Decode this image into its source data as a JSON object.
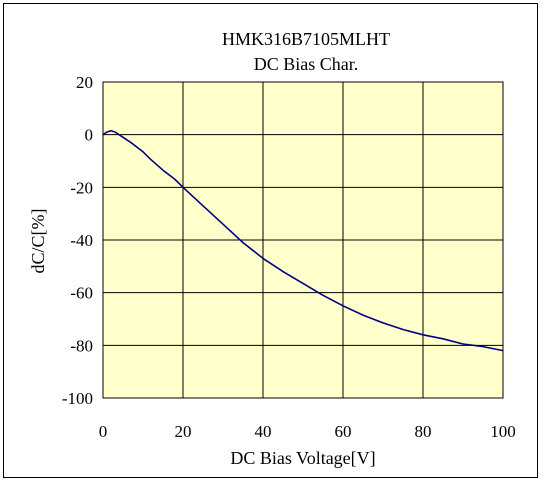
{
  "chart_data": {
    "type": "line",
    "title": "HMK316B7105MLHT",
    "subtitle": "DC Bias Char.",
    "xlabel": "DC Bias Voltage[V]",
    "ylabel": "dC/C[%]",
    "xlim": [
      0,
      100
    ],
    "ylim": [
      -100,
      20
    ],
    "x_ticks": [
      "0",
      "20",
      "40",
      "60",
      "80",
      "100"
    ],
    "y_ticks": [
      "20",
      "0",
      "-20",
      "-40",
      "-60",
      "-80",
      "-100"
    ],
    "grid": true,
    "legend": "none",
    "colors": {
      "plot_background": "#ffffcc",
      "line": "#000080",
      "grid": "#000000"
    },
    "series": [
      {
        "x": [
          0,
          1,
          2,
          3,
          5,
          7,
          10,
          12,
          15,
          18,
          20,
          25,
          30,
          35,
          40,
          45,
          50,
          55,
          60,
          65,
          70,
          75,
          80,
          85,
          90,
          95,
          100
        ],
        "y": [
          0,
          1,
          1.5,
          1,
          -1,
          -3,
          -6.5,
          -9.5,
          -13.5,
          -17,
          -20,
          -27,
          -34,
          -41,
          -47,
          -52,
          -56.5,
          -61,
          -65,
          -68.5,
          -71.5,
          -74,
          -76,
          -77.5,
          -79.5,
          -80.5,
          -82
        ]
      }
    ]
  }
}
